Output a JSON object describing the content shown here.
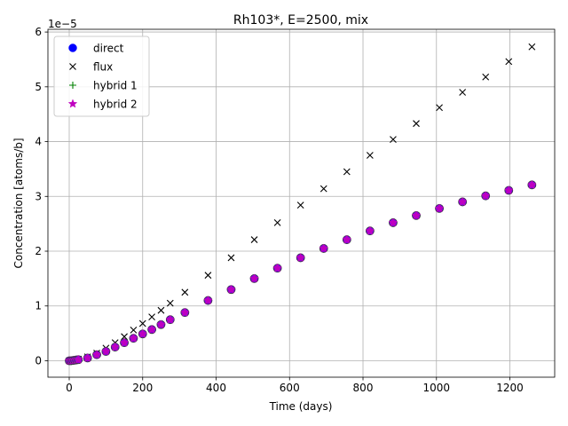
{
  "chart_data": {
    "type": "scatter",
    "title": "Rh103*, E=2500, mix",
    "xlabel": "Time (days)",
    "ylabel": "Concentration [atoms/b]",
    "y_offset_text": "1e−5",
    "xlim": [
      -58,
      1322
    ],
    "ylim": [
      -0.3,
      6.05
    ],
    "x_ticks": [
      0,
      200,
      400,
      600,
      800,
      1000,
      1200
    ],
    "y_ticks": [
      0,
      1,
      2,
      3,
      4,
      5,
      6
    ],
    "y_scale_note": "y values in units of 1e-5",
    "grid": true,
    "legend_position": "upper-left",
    "colors": {
      "direct": "#0000ff",
      "flux": "#000000",
      "hybrid1": "#008000",
      "hybrid2": "#bf00bf",
      "grid": "#b0b0b0"
    },
    "series": [
      {
        "name": "direct",
        "marker": "circle",
        "x": [
          0,
          5,
          10,
          15,
          20,
          25,
          50,
          75,
          100,
          125,
          150,
          175,
          200,
          225,
          250,
          275,
          315,
          378,
          441,
          504,
          567,
          630,
          693,
          756,
          819,
          882,
          945,
          1008,
          1071,
          1134,
          1197,
          1260
        ],
        "y": [
          0,
          0,
          0.005,
          0.01,
          0.015,
          0.02,
          0.05,
          0.11,
          0.17,
          0.25,
          0.33,
          0.41,
          0.49,
          0.57,
          0.66,
          0.75,
          0.88,
          1.1,
          1.3,
          1.5,
          1.69,
          1.88,
          2.05,
          2.21,
          2.37,
          2.52,
          2.65,
          2.78,
          2.9,
          3.01,
          3.11,
          3.21
        ]
      },
      {
        "name": "flux",
        "marker": "x",
        "x": [
          0,
          5,
          10,
          15,
          20,
          25,
          50,
          75,
          100,
          125,
          150,
          175,
          200,
          225,
          250,
          275,
          315,
          378,
          441,
          504,
          567,
          630,
          693,
          756,
          819,
          882,
          945,
          1008,
          1071,
          1134,
          1197,
          1260
        ],
        "y": [
          0,
          0,
          0.005,
          0.01,
          0.02,
          0.03,
          0.07,
          0.14,
          0.23,
          0.33,
          0.44,
          0.56,
          0.68,
          0.8,
          0.92,
          1.05,
          1.25,
          1.56,
          1.88,
          2.21,
          2.52,
          2.84,
          3.14,
          3.45,
          3.75,
          4.04,
          4.33,
          4.62,
          4.9,
          5.18,
          5.46,
          5.73
        ]
      },
      {
        "name": "hybrid 1",
        "marker": "plus",
        "x": [
          0,
          5,
          10,
          15,
          20,
          25,
          50,
          75,
          100,
          125,
          150,
          175,
          200,
          225,
          250,
          275,
          315,
          378,
          441,
          504,
          567,
          630,
          693,
          756,
          819,
          882,
          945,
          1008,
          1071,
          1134,
          1197,
          1260
        ],
        "y": [
          0,
          0,
          0.005,
          0.01,
          0.015,
          0.02,
          0.05,
          0.11,
          0.17,
          0.25,
          0.33,
          0.41,
          0.49,
          0.57,
          0.66,
          0.75,
          0.88,
          1.1,
          1.3,
          1.5,
          1.69,
          1.88,
          2.05,
          2.21,
          2.37,
          2.52,
          2.65,
          2.78,
          2.9,
          3.01,
          3.11,
          3.21
        ]
      },
      {
        "name": "hybrid 2",
        "marker": "star",
        "x": [
          0,
          5,
          10,
          15,
          20,
          25,
          50,
          75,
          100,
          125,
          150,
          175,
          200,
          225,
          250,
          275,
          315,
          378,
          441,
          504,
          567,
          630,
          693,
          756,
          819,
          882,
          945,
          1008,
          1071,
          1134,
          1197,
          1260
        ],
        "y": [
          0,
          0,
          0.005,
          0.01,
          0.015,
          0.02,
          0.05,
          0.11,
          0.17,
          0.25,
          0.33,
          0.41,
          0.49,
          0.57,
          0.66,
          0.75,
          0.88,
          1.1,
          1.3,
          1.5,
          1.69,
          1.88,
          2.05,
          2.21,
          2.37,
          2.52,
          2.65,
          2.78,
          2.9,
          3.01,
          3.11,
          3.21
        ]
      }
    ]
  }
}
